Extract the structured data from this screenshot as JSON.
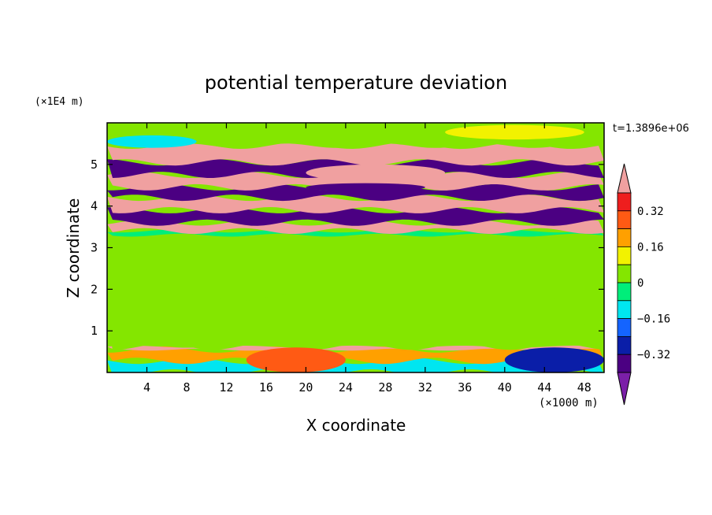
{
  "chart_data": {
    "type": "heatmap",
    "title": "potential temperature deviation",
    "xlabel": "X coordinate",
    "ylabel": "Z coordinate",
    "x_unit": "(×1000 m)",
    "y_unit": "(×1E4 m)",
    "time_label": "t=1.3896e+06",
    "xlim": [
      0,
      50
    ],
    "ylim": [
      0,
      6
    ],
    "x_ticks": [
      "4",
      "8",
      "12",
      "16",
      "20",
      "24",
      "28",
      "32",
      "36",
      "40",
      "44",
      "48"
    ],
    "x_tick_values": [
      4,
      8,
      12,
      16,
      20,
      24,
      28,
      32,
      36,
      40,
      44,
      48
    ],
    "y_ticks": [
      "1",
      "2",
      "3",
      "4",
      "5"
    ],
    "y_tick_values": [
      1,
      2,
      3,
      4,
      5
    ],
    "colorbar": {
      "levels": [
        -0.4,
        -0.32,
        -0.24,
        -0.16,
        -0.08,
        0,
        0.08,
        0.16,
        0.24,
        0.32,
        0.4
      ],
      "labels": [
        "0.32",
        "0.16",
        "0",
        "−0.16",
        "−0.32"
      ],
      "label_values": [
        0.32,
        0.16,
        0,
        -0.16,
        -0.32
      ],
      "colors": [
        "#7b1fa8",
        "#4b0082",
        "#0a1ea8",
        "#1464ff",
        "#00e6f0",
        "#00ee7a",
        "#84e600",
        "#f2f200",
        "#ffa000",
        "#ff5a14",
        "#ee1e1e",
        "#f0a0a0"
      ]
    },
    "bands": [
      {
        "z": [
          0.0,
          0.28
        ],
        "value": -0.1
      },
      {
        "z": [
          0.28,
          0.55
        ],
        "value": 0.18
      },
      {
        "z": [
          0.55,
          0.62
        ],
        "value": 0.42
      },
      {
        "z": [
          0.62,
          1.2
        ],
        "value": 0.06
      },
      {
        "z": [
          1.2,
          1.8
        ],
        "value": 0.03
      },
      {
        "z": [
          1.8,
          2.4
        ],
        "value": 0.07
      },
      {
        "z": [
          2.4,
          3.0
        ],
        "value": 0.03
      },
      {
        "z": [
          3.0,
          3.3
        ],
        "value": 0.06
      },
      {
        "z": [
          3.3,
          3.4
        ],
        "value": -0.06
      },
      {
        "z": [
          3.4,
          3.6
        ],
        "value": 0.42
      },
      {
        "z": [
          3.6,
          3.9
        ],
        "value": -0.4
      },
      {
        "z": [
          3.9,
          4.2
        ],
        "value": 0.42
      },
      {
        "z": [
          4.2,
          4.45
        ],
        "value": -0.4
      },
      {
        "z": [
          4.45,
          4.75
        ],
        "value": 0.42
      },
      {
        "z": [
          4.75,
          5.05
        ],
        "value": -0.4
      },
      {
        "z": [
          5.05,
          5.45
        ],
        "value": 0.42
      },
      {
        "z": [
          5.45,
          5.6
        ],
        "value": 0.01
      },
      {
        "z": [
          5.6,
          5.95
        ],
        "value": 0.05
      }
    ],
    "features": [
      {
        "x": [
          20,
          34
        ],
        "z": [
          4.6,
          5.0
        ],
        "value": 0.42
      },
      {
        "x": [
          0,
          9
        ],
        "z": [
          5.4,
          5.7
        ],
        "value": -0.14
      },
      {
        "x": [
          34,
          48
        ],
        "z": [
          5.6,
          5.95
        ],
        "value": 0.12
      },
      {
        "x": [
          20,
          32
        ],
        "z": [
          4.35,
          4.55
        ],
        "value": -0.4
      },
      {
        "x": [
          14,
          24
        ],
        "z": [
          0.0,
          0.6
        ],
        "value": 0.28
      },
      {
        "x": [
          40,
          50
        ],
        "z": [
          0.0,
          0.6
        ],
        "value": -0.28
      }
    ]
  }
}
